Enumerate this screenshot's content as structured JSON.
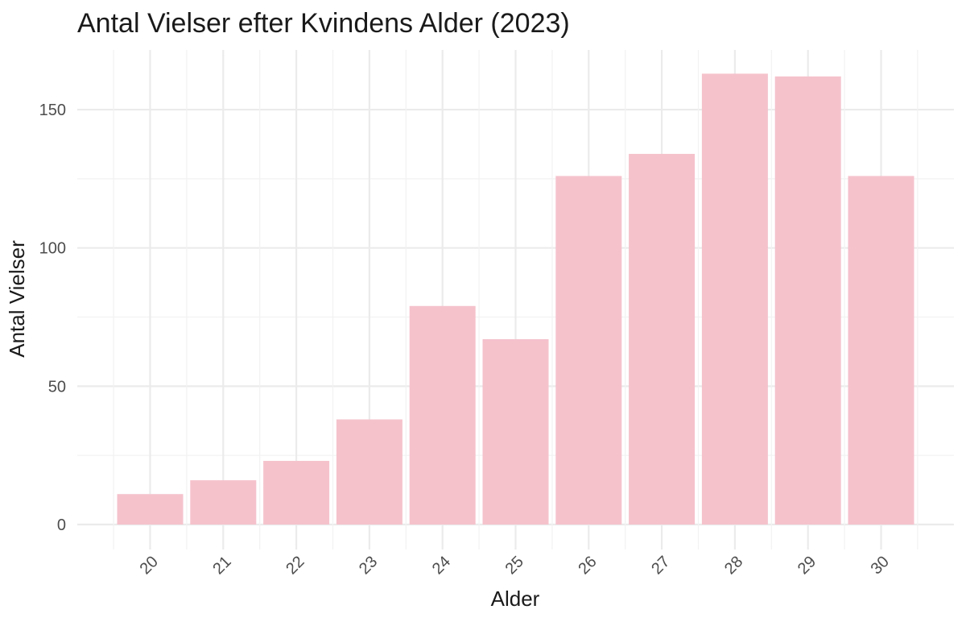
{
  "chart_data": {
    "type": "bar",
    "title": "Antal Vielser efter Kvindens Alder (2023)",
    "xlabel": "Alder",
    "ylabel": "Antal Vielser",
    "categories": [
      "20",
      "21",
      "22",
      "23",
      "24",
      "25",
      "26",
      "27",
      "28",
      "29",
      "30"
    ],
    "values": [
      11,
      16,
      23,
      38,
      79,
      67,
      126,
      134,
      163,
      162,
      126
    ],
    "ylim": [
      0,
      170
    ],
    "yticks": [
      "0",
      "50",
      "100",
      "150"
    ],
    "grid": true,
    "bar_color": "#f5c2cc",
    "legend": "none"
  }
}
